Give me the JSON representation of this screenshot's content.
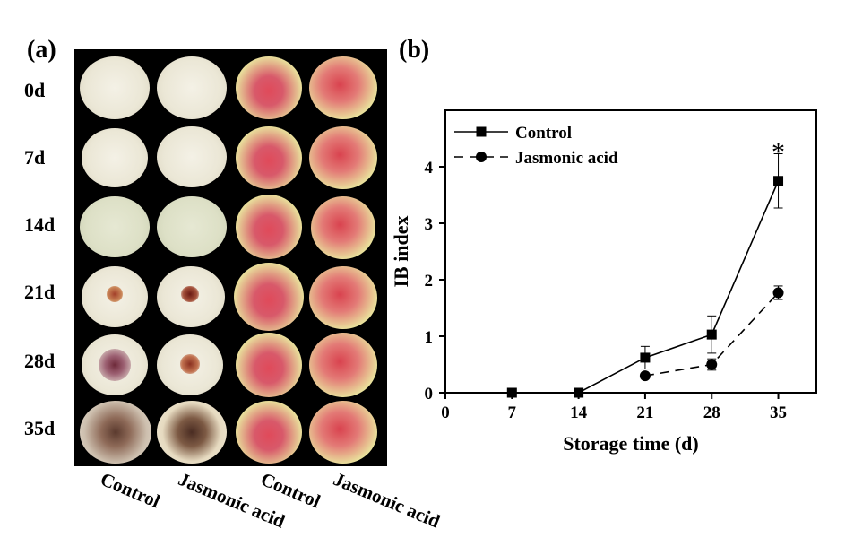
{
  "panel_a": {
    "letter": "(a)",
    "days": [
      "0d",
      "7d",
      "14d",
      "21d",
      "28d",
      "35d"
    ],
    "column_labels": [
      "Control",
      "Jasmonic acid",
      "Control",
      "Jasmonic acid"
    ]
  },
  "panel_b": {
    "letter": "(b)"
  },
  "chart_data": {
    "type": "line",
    "xlabel": "Storage time (d)",
    "ylabel": "IB index",
    "xlim": [
      0,
      39
    ],
    "ylim": [
      0,
      5
    ],
    "xticks": [
      0,
      7,
      14,
      21,
      28,
      35
    ],
    "yticks": [
      0,
      1,
      2,
      3,
      4
    ],
    "legend_position": "top-left",
    "series": [
      {
        "name": "Control",
        "marker": "square",
        "line": "solid",
        "x": [
          7,
          14,
          21,
          28,
          35
        ],
        "values": [
          0,
          0,
          0.62,
          1.03,
          3.75
        ],
        "errors": [
          0,
          0,
          0.2,
          0.33,
          0.48
        ]
      },
      {
        "name": "Jasmonic acid",
        "marker": "circle",
        "line": "dashed",
        "x": [
          21,
          28,
          35
        ],
        "values": [
          0.3,
          0.5,
          1.77
        ],
        "errors": [
          0,
          0.1,
          0.12
        ]
      }
    ],
    "annotations": [
      {
        "text": "*",
        "x": 35,
        "y": 4.3
      }
    ]
  }
}
